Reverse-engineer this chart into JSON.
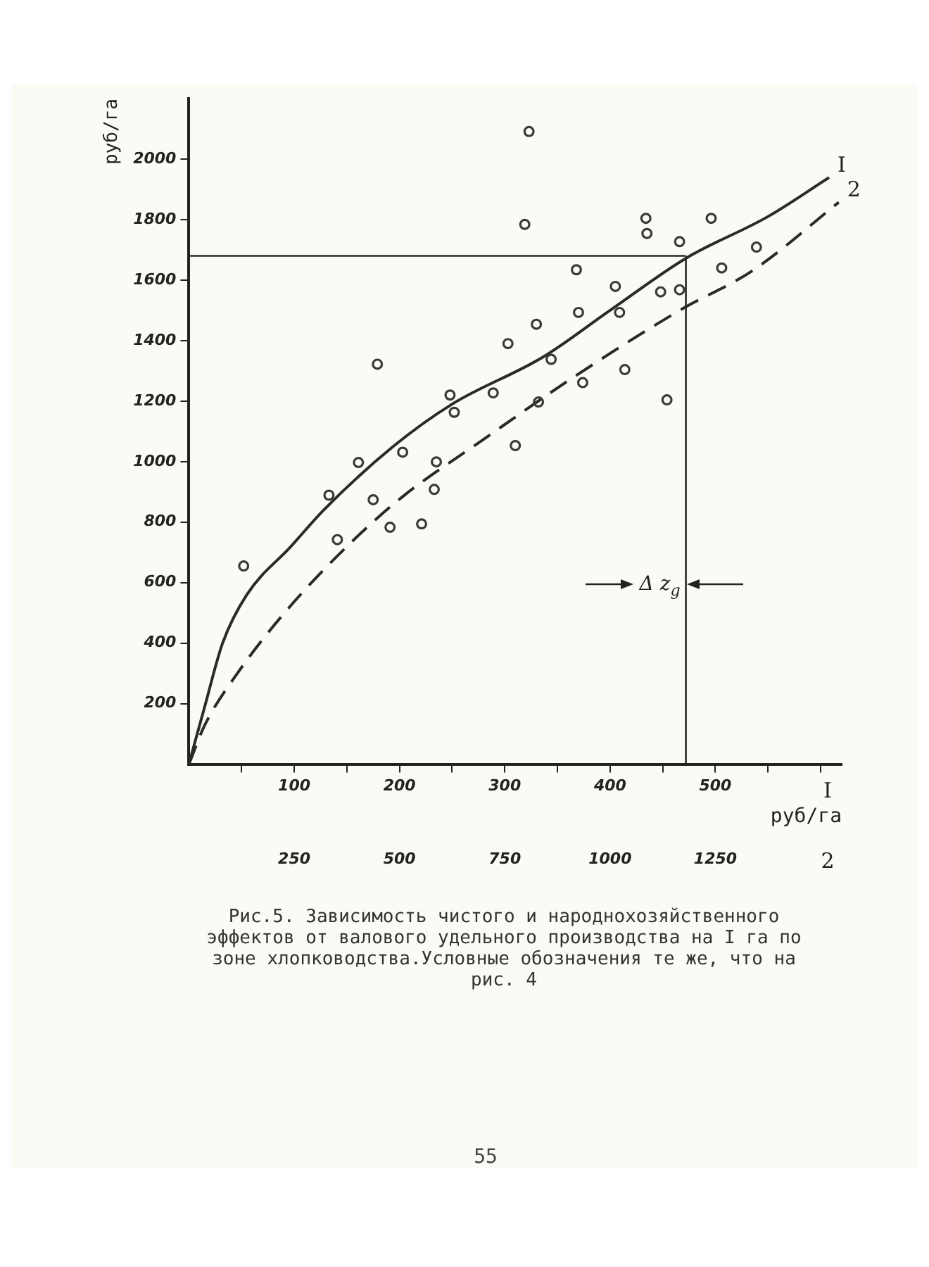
{
  "chart_data": {
    "type": "scatter",
    "title": "Рис.5. Зависимость чистого и народнохозяйственного эффектов от валового удельного производства на I га по зоне хлопководства.Условные обозначения те же, что на рис. 4",
    "xlabel": "руб/га",
    "ylabel": "руб/га",
    "xlim": [
      0,
      620
    ],
    "xticks": [
      {
        "value": 50,
        "label": null
      },
      100,
      {
        "value": 150,
        "label": null
      },
      200,
      {
        "value": 250,
        "label": null
      },
      300,
      {
        "value": 350,
        "label": null
      },
      400,
      {
        "value": 450,
        "label": null
      },
      500,
      {
        "value": 550,
        "label": null
      },
      {
        "value": 600,
        "label": null
      }
    ],
    "x2lim": [
      0,
      1550
    ],
    "x2ticks": [
      250,
      500,
      750,
      1000,
      1250
    ],
    "ylim": [
      0,
      2200
    ],
    "yticks": [
      200,
      400,
      600,
      800,
      1000,
      1200,
      1400,
      1600,
      1800,
      2000
    ],
    "grid": false,
    "legend": false,
    "series": [
      {
        "type": "scatter",
        "marker": "circle",
        "color": "#3a3a3a",
        "x": [
          52,
          133,
          141,
          161,
          175,
          179,
          191,
          203,
          221,
          233,
          235,
          248,
          252,
          289,
          303,
          310,
          319,
          323,
          330,
          332,
          344,
          368,
          370,
          374,
          405,
          409,
          414,
          434,
          435,
          448,
          454,
          466,
          466,
          496,
          506,
          539
        ],
        "values": [
          655,
          889,
          742,
          997,
          874,
          1322,
          783,
          1031,
          794,
          908,
          999,
          1220,
          1163,
          1227,
          1390,
          1053,
          1784,
          2091,
          1454,
          1197,
          1338,
          1634,
          1493,
          1261,
          1579,
          1493,
          1304,
          1804,
          1754,
          1561,
          1204,
          1727,
          1568,
          1804,
          1640,
          1709
        ]
      },
      {
        "type": "line",
        "name": "I",
        "marker": "none",
        "line_style": "solid",
        "color": "#2a2a2a",
        "x": [
          0,
          15,
          32,
          55,
          97,
          128,
          194,
          250,
          336,
          400,
          472,
          550,
          608
        ],
        "values": [
          0,
          190,
          400,
          560,
          720,
          840,
          1050,
          1190,
          1345,
          1500,
          1672,
          1810,
          1939
        ]
      },
      {
        "type": "line",
        "name": "2",
        "axis": "x2",
        "marker": "none",
        "line_style": "dashed",
        "color": "#2a2a2a",
        "x": [
          0,
          38,
          115,
          230,
          383,
          510,
          698,
          910,
          1168,
          1338,
          1543
        ],
        "values": [
          0,
          130,
          300,
          505,
          730,
          887,
          1072,
          1276,
          1502,
          1631,
          1857
        ]
      }
    ],
    "ref_lines": [
      {
        "axis": "y",
        "value": 1680,
        "color": "#2a2a2a"
      },
      {
        "axis": "x",
        "value": 472,
        "color": "#2a2a2a"
      }
    ],
    "annotations": [
      {
        "text": "Δ z$_{g}$",
        "x": 472,
        "y": 594
      },
      "I",
      "2",
      "55"
    ]
  }
}
